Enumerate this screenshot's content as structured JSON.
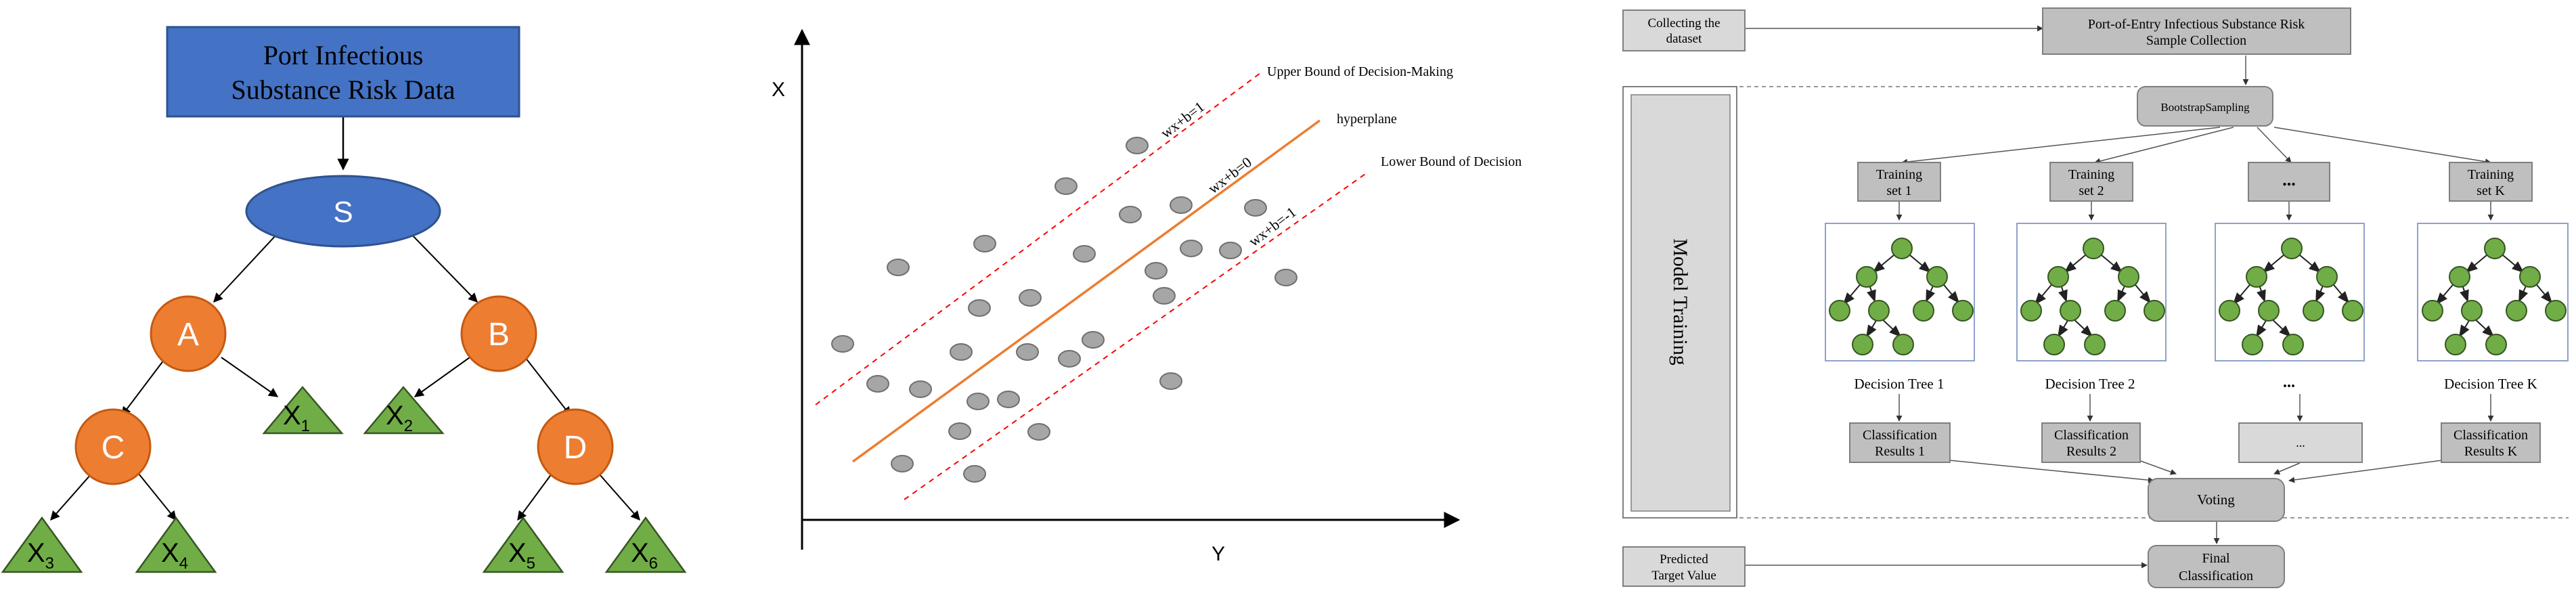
{
  "panel1": {
    "root_line1": "Port Infectious",
    "root_line2": "Substance Risk Data",
    "node_s": "S",
    "node_a": "A",
    "node_b": "B",
    "node_c": "C",
    "node_d": "D",
    "leaf_letter": "X",
    "leaf_sub_1": "1",
    "leaf_sub_2": "2",
    "leaf_sub_3": "3",
    "leaf_sub_4": "4",
    "leaf_sub_5": "5",
    "leaf_sub_6": "6",
    "colors": {
      "root_fill": "#4472C4",
      "node_s": "#4472C4",
      "node_abcd": "#ED7D31",
      "leaf": "#70AD47"
    }
  },
  "panel2": {
    "axis_x_label": "X",
    "axis_y_label": "Y",
    "upper_bound_label": "Upper Bound of Decision-Making",
    "hyperplane_label": "hyperplane",
    "lower_bound_label": "Lower Bound of Decision",
    "eq_upper": "wx+b=1",
    "eq_mid": "wx+b=0",
    "eq_lower": "wx+b=-1",
    "colors": {
      "hyperplane": "#ED7D31",
      "bounds": "#FF0000",
      "points": "#A6A6A6"
    }
  },
  "panel3": {
    "collect_line1": "Collecting the",
    "collect_line2": "dataset",
    "sample_line1": "Port-of-Entry Infectious Substance Risk",
    "sample_line2": "Sample Collection",
    "bootstrap": "BootstrapSampling",
    "model_training": "Model Training",
    "ts1_line1": "Training",
    "ts1_line2": "set 1",
    "ts2_line1": "Training",
    "ts2_line2": "set 2",
    "ts_dots": "...",
    "tsk_line1": "Training",
    "tsk_line2": "set K",
    "dt1": "Decision Tree 1",
    "dt2": "Decision Tree 2",
    "dt_dots": "...",
    "dtk": "Decision Tree K",
    "cr1_line1": "Classification",
    "cr1_line2": "Results 1",
    "cr2_line1": "Classification",
    "cr2_line2": "Results 2",
    "cr_dots": "...",
    "crk_line1": "Classification",
    "crk_line2": "Results K",
    "voting": "Voting",
    "predicted_line1": "Predicted",
    "predicted_line2": "Target Value",
    "final_line1": "Final",
    "final_line2": "Classification",
    "colors": {
      "box_fill": "#BFBFBF",
      "box_light": "#D9D9D9",
      "tree_node": "#70AD47",
      "border": "#7F7F7F"
    }
  }
}
